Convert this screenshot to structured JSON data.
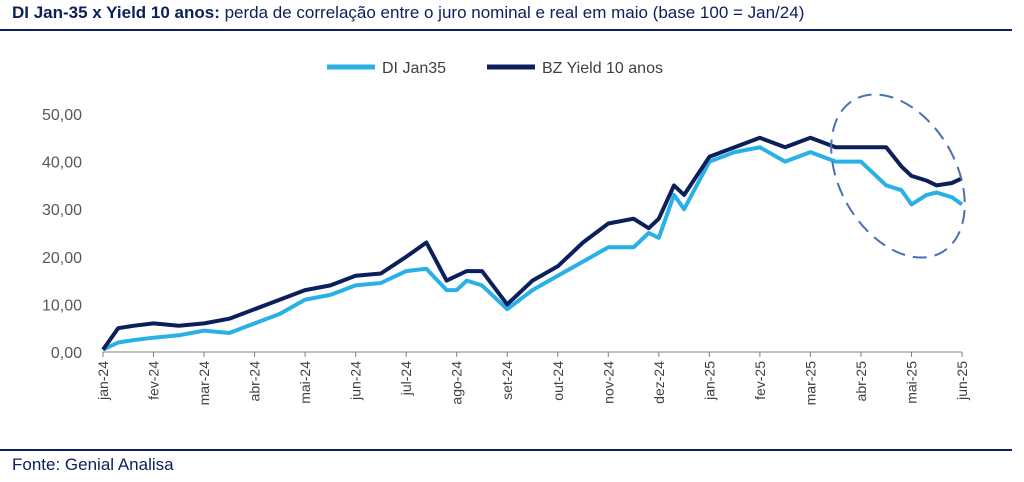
{
  "header": {
    "title_bold": "DI Jan-35 x Yield 10 anos:",
    "title_rest": " perda de correlação entre o juro nominal e real em maio (base 100 = Jan/24)"
  },
  "footer": {
    "source": "Fonte: Genial Analisa"
  },
  "colors": {
    "di": "#29b0e6",
    "bz": "#0b1f5c",
    "ellipse": "#4a6fb5",
    "axis": "#808080"
  },
  "chart_data": {
    "type": "line",
    "title": "DI Jan-35 x Yield 10 anos: perda de correlação entre o juro nominal e real em maio (base 100 = Jan/24)",
    "ylim": [
      0,
      50
    ],
    "y_ticks": [
      "0,00",
      "10,00",
      "20,00",
      "30,00",
      "40,00",
      "50,00"
    ],
    "x_ticks": [
      "jan-24",
      "fev-24",
      "mar-24",
      "abr-24",
      "mai-24",
      "jun-24",
      "jul-24",
      "ago-24",
      "set-24",
      "out-24",
      "nov-24",
      "dez-24",
      "jan-25",
      "fev-25",
      "mar-25",
      "abr-25",
      "mai-25",
      "jun-25"
    ],
    "legend_position": "top-center",
    "annotation": "dashed ellipse highlighting apr-25 to jun-25",
    "series": [
      {
        "name": "DI Jan35",
        "x": [
          0,
          0.3,
          0.6,
          1.0,
          1.5,
          2.0,
          2.5,
          3.0,
          3.5,
          4.0,
          4.5,
          5.0,
          5.5,
          6.0,
          6.4,
          6.8,
          7.0,
          7.2,
          7.5,
          8.0,
          8.5,
          9.0,
          9.5,
          10.0,
          10.5,
          10.8,
          11.0,
          11.3,
          11.5,
          12.0,
          12.5,
          13.0,
          13.5,
          14.0,
          14.5,
          15.0,
          15.5,
          15.8,
          16.0,
          16.3,
          16.5,
          16.8,
          17.0
        ],
        "values": [
          0.5,
          2.0,
          2.5,
          3.0,
          3.5,
          4.5,
          4.0,
          6.0,
          8.0,
          11.0,
          12.0,
          14.0,
          14.5,
          17.0,
          17.5,
          13.0,
          13.0,
          15.0,
          14.0,
          9.0,
          13.0,
          16.0,
          19.0,
          22.0,
          22.0,
          25.0,
          24.0,
          33.0,
          30.0,
          40.0,
          42.0,
          43.0,
          40.0,
          42.0,
          40.0,
          40.0,
          35.0,
          34.0,
          31.0,
          33.0,
          33.5,
          32.5,
          31.0
        ]
      },
      {
        "name": "BZ Yield 10 anos",
        "x": [
          0,
          0.3,
          0.6,
          1.0,
          1.5,
          2.0,
          2.5,
          3.0,
          3.5,
          4.0,
          4.5,
          5.0,
          5.5,
          6.0,
          6.4,
          6.8,
          7.0,
          7.2,
          7.5,
          8.0,
          8.5,
          9.0,
          9.5,
          10.0,
          10.5,
          10.8,
          11.0,
          11.3,
          11.5,
          12.0,
          12.5,
          13.0,
          13.5,
          14.0,
          14.5,
          15.0,
          15.5,
          15.8,
          16.0,
          16.3,
          16.5,
          16.8,
          17.0
        ],
        "values": [
          0.5,
          5.0,
          5.5,
          6.0,
          5.5,
          6.0,
          7.0,
          9.0,
          11.0,
          13.0,
          14.0,
          16.0,
          16.5,
          20.0,
          23.0,
          15.0,
          16.0,
          17.0,
          17.0,
          10.0,
          15.0,
          18.0,
          23.0,
          27.0,
          28.0,
          26.0,
          28.0,
          35.0,
          33.0,
          41.0,
          43.0,
          45.0,
          43.0,
          45.0,
          43.0,
          43.0,
          43.0,
          39.0,
          37.0,
          36.0,
          35.0,
          35.5,
          36.5
        ]
      }
    ]
  }
}
